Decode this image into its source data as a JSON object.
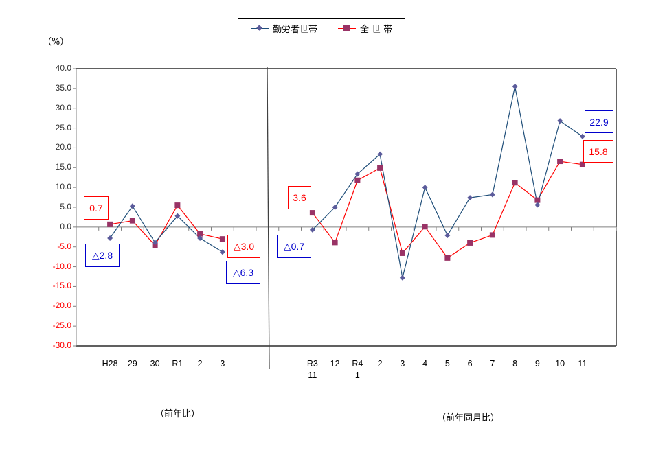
{
  "legend": {
    "items": [
      {
        "label": "勤労者世帯",
        "line_color": "#1F4E79",
        "marker_color": "#5B5B9B",
        "marker": "diamond"
      },
      {
        "label": "全 世 帯",
        "line_color": "#FF0000",
        "marker_color": "#993366",
        "marker": "square"
      }
    ]
  },
  "y_axis": {
    "unit_label": "（%）",
    "ticks": [
      "40.0",
      "35.0",
      "30.0",
      "25.0",
      "20.0",
      "15.0",
      "10.0",
      "5.0",
      "0.0",
      "-5.0",
      "-10.0",
      "-15.0",
      "-20.0",
      "-25.0",
      "-30.0"
    ],
    "positive_color": "#333333",
    "negative_color": "#FF0000"
  },
  "x_axis": {
    "annual_labels": [
      "H28",
      "29",
      "30",
      "R1",
      "2",
      "3"
    ],
    "monthly_labels": [
      [
        "R3",
        "11"
      ],
      [
        "12",
        ""
      ],
      [
        "R4",
        "1"
      ],
      [
        "2",
        ""
      ],
      [
        "3",
        ""
      ],
      [
        "4",
        ""
      ],
      [
        "5",
        ""
      ],
      [
        "6",
        ""
      ],
      [
        "7",
        ""
      ],
      [
        "8",
        ""
      ],
      [
        "9",
        ""
      ],
      [
        "10",
        ""
      ],
      [
        "11",
        ""
      ]
    ]
  },
  "sections": {
    "annual": "（前年比）",
    "monthly": "（前年同月比）"
  },
  "callouts": [
    {
      "text": "0.7",
      "color": "#FF0000"
    },
    {
      "text": "△2.8",
      "color": "#0000CC"
    },
    {
      "text": "△3.0",
      "color": "#FF0000"
    },
    {
      "text": "△6.3",
      "color": "#0000CC"
    },
    {
      "text": "3.6",
      "color": "#FF0000"
    },
    {
      "text": "△0.7",
      "color": "#0000CC"
    },
    {
      "text": "22.9",
      "color": "#0000CC"
    },
    {
      "text": "15.8",
      "color": "#FF0000"
    }
  ],
  "chart_data": {
    "type": "line",
    "title": "",
    "xlabel": "",
    "ylabel": "（%）",
    "ylim": [
      -30,
      40
    ],
    "grid": false,
    "legend_position": "top",
    "categories": [
      "H28",
      "29",
      "30",
      "R1",
      "2",
      "3",
      "R3 11",
      "12",
      "R4 1",
      "2",
      "3",
      "4",
      "5",
      "6",
      "7",
      "8",
      "9",
      "10",
      "11"
    ],
    "groups": [
      {
        "name": "（前年比）",
        "categories": [
          "H28",
          "29",
          "30",
          "R1",
          "2",
          "3"
        ]
      },
      {
        "name": "（前年同月比）",
        "categories": [
          "R3 11",
          "12",
          "R4 1",
          "2",
          "3",
          "4",
          "5",
          "6",
          "7",
          "8",
          "9",
          "10",
          "11"
        ]
      }
    ],
    "series": [
      {
        "name": "勤労者世帯",
        "annual": [
          -2.8,
          5.3,
          -3.9,
          2.8,
          -2.8,
          -6.3
        ],
        "monthly": [
          -0.7,
          5.0,
          13.4,
          18.4,
          -12.8,
          10.0,
          -2.1,
          7.4,
          8.2,
          35.5,
          5.6,
          26.8,
          22.9
        ]
      },
      {
        "name": "全 世 帯",
        "annual": [
          0.7,
          1.6,
          -4.6,
          5.5,
          -1.7,
          -3.0
        ],
        "monthly": [
          3.6,
          -3.9,
          11.8,
          14.9,
          -6.6,
          0.1,
          -7.8,
          -4.0,
          -2.0,
          11.2,
          6.8,
          16.6,
          15.8
        ]
      }
    ],
    "annotations": [
      "0.7",
      "△2.8",
      "△3.0",
      "△6.3",
      "3.6",
      "△0.7",
      "22.9",
      "15.8"
    ]
  }
}
